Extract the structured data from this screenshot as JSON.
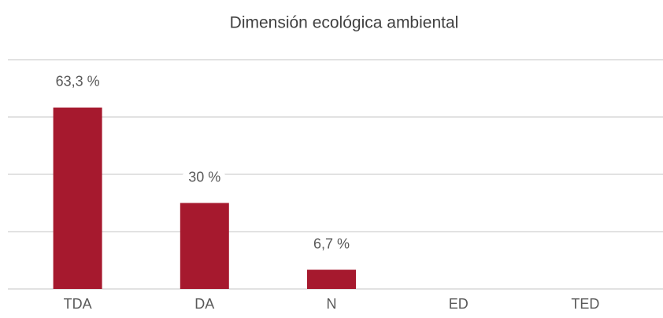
{
  "chart_data": {
    "type": "bar",
    "title": "Dimensión ecológica ambiental",
    "categories": [
      "TDA",
      "DA",
      "N",
      "ED",
      "TED"
    ],
    "values": [
      63.3,
      30,
      6.7,
      0,
      0
    ],
    "value_labels": [
      "63,3 %",
      "30 %",
      "6,7 %",
      null,
      null
    ],
    "color": "#a6192e",
    "ylim": [
      0,
      80
    ],
    "yticks": [
      0,
      20,
      40,
      60,
      80
    ],
    "grid": true
  }
}
